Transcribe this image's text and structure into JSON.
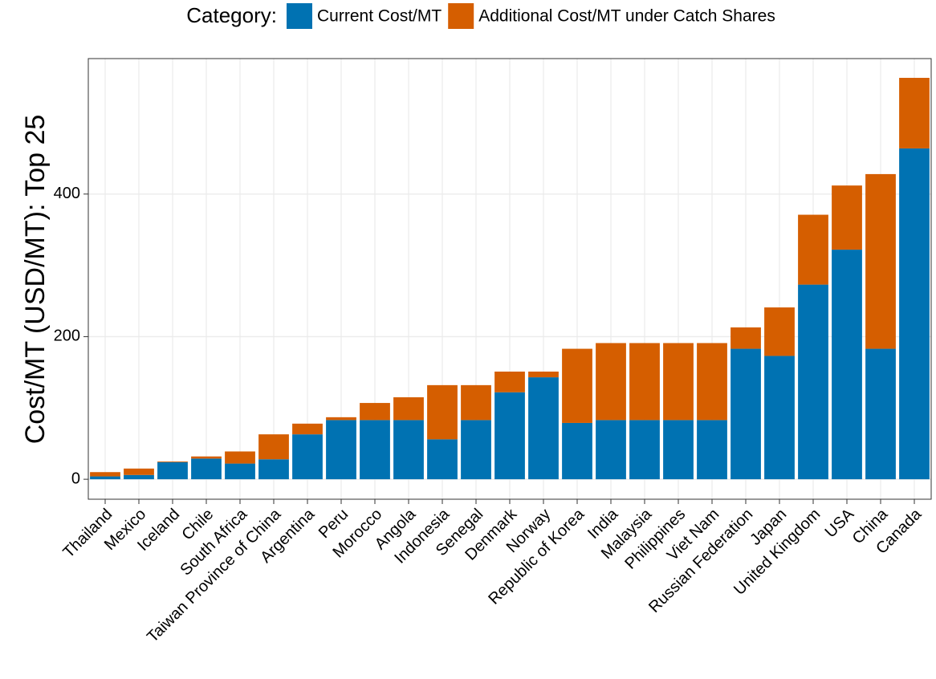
{
  "chart_data": {
    "type": "stacked_bar",
    "y_label": "Cost/MT (USD/MT): Top 25",
    "legend_title": "Category:",
    "legend_position": "top",
    "grid": true,
    "categories": [
      "Thailand",
      "Mexico",
      "Iceland",
      "Chile",
      "South Africa",
      "Taiwan Province of China",
      "Argentina",
      "Peru",
      "Morocco",
      "Angola",
      "Indonesia",
      "Senegal",
      "Denmark",
      "Norway",
      "Republic of Korea",
      "India",
      "Malaysia",
      "Philippines",
      "Viet Nam",
      "Russian Federation",
      "Japan",
      "United Kingdom",
      "USA",
      "China",
      "Canada"
    ],
    "series": [
      {
        "name": "Current Cost/MT",
        "color": "#0072b2",
        "values": [
          4,
          6,
          24,
          29,
          22,
          28,
          63,
          83,
          83,
          83,
          56,
          83,
          122,
          143,
          79,
          83,
          83,
          83,
          83,
          183,
          173,
          273,
          322,
          183,
          464
        ]
      },
      {
        "name": "Additional Cost/MT under Catch Shares",
        "color": "#d55e00",
        "values": [
          6,
          9,
          1,
          3,
          17,
          35,
          15,
          4,
          24,
          32,
          76,
          49,
          29,
          8,
          104,
          108,
          108,
          108,
          108,
          30,
          68,
          98,
          90,
          245,
          99
        ]
      }
    ],
    "ylim": [
      -28,
      590
    ],
    "yticks": [
      0,
      200,
      400
    ]
  }
}
